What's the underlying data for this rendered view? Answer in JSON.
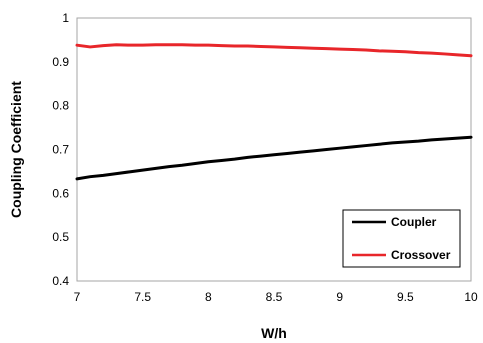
{
  "chart_data": {
    "type": "line",
    "title": "",
    "xlabel": "W/h",
    "ylabel": "Coupling Coefficient",
    "xlim": [
      7,
      10
    ],
    "ylim": [
      0.4,
      1
    ],
    "x_ticks": [
      "7",
      "7.5",
      "8",
      "8.5",
      "9",
      "9.5",
      "10"
    ],
    "y_ticks": [
      "0.4",
      "0.5",
      "0.6",
      "0.7",
      "0.8",
      "0.9",
      "1"
    ],
    "grid": false,
    "legend_position": "bottom-right",
    "x": [
      7.0,
      7.1,
      7.2,
      7.3,
      7.4,
      7.5,
      7.6,
      7.7,
      7.8,
      7.9,
      8.0,
      8.1,
      8.2,
      8.3,
      8.4,
      8.5,
      8.6,
      8.7,
      8.8,
      8.9,
      9.0,
      9.1,
      9.2,
      9.3,
      9.4,
      9.5,
      9.6,
      9.7,
      9.8,
      9.9,
      10.0
    ],
    "series": [
      {
        "name": "Coupler",
        "color": "#000000",
        "values": [
          0.633,
          0.638,
          0.641,
          0.645,
          0.649,
          0.653,
          0.657,
          0.661,
          0.664,
          0.668,
          0.672,
          0.675,
          0.678,
          0.682,
          0.685,
          0.688,
          0.691,
          0.694,
          0.697,
          0.7,
          0.703,
          0.706,
          0.709,
          0.712,
          0.715,
          0.717,
          0.719,
          0.722,
          0.724,
          0.726,
          0.728
        ]
      },
      {
        "name": "Crossover",
        "color": "#e8262a",
        "values": [
          0.938,
          0.934,
          0.937,
          0.939,
          0.938,
          0.938,
          0.939,
          0.939,
          0.939,
          0.938,
          0.938,
          0.937,
          0.936,
          0.936,
          0.935,
          0.934,
          0.933,
          0.932,
          0.931,
          0.93,
          0.929,
          0.928,
          0.927,
          0.925,
          0.924,
          0.923,
          0.921,
          0.92,
          0.918,
          0.916,
          0.914
        ]
      }
    ]
  }
}
